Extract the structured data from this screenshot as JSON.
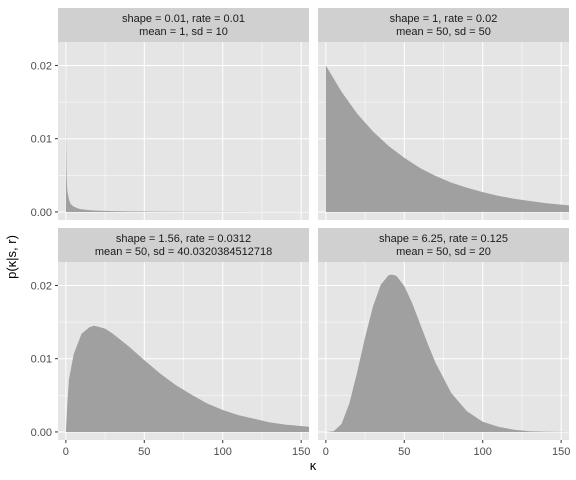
{
  "chart_data": {
    "type": "area",
    "ylabel": "p(κ|s, r)",
    "xlabel": "κ",
    "xlim": [
      -5,
      155
    ],
    "ylim": [
      -0.0011,
      0.0232
    ],
    "x_ticks": [
      0,
      50,
      100,
      150
    ],
    "y_ticks": [
      0.0,
      0.01,
      0.02
    ],
    "y_tick_labels": [
      "0.00",
      "0.01",
      "0.02"
    ],
    "fill_color": "#a0a0a0",
    "panel_bg": "#e5e5e5",
    "strip_bg": "#d0d0d0",
    "grid_color": "#ffffff",
    "grid": true,
    "facet_layout": [
      2,
      2
    ],
    "panels": [
      {
        "label1": "shape = 0.01, rate = 0.01",
        "label2": "mean = 1, sd = 10",
        "shape": 0.01,
        "rate": 0.01,
        "x": [
          0.05,
          0.1,
          0.2,
          0.5,
          1,
          2,
          3,
          5,
          8,
          10,
          15,
          20,
          30,
          40,
          60,
          80,
          100,
          120,
          155
        ],
        "y": [
          0.0218,
          0.0195,
          0.0098,
          0.0047,
          0.0028,
          0.0017,
          0.0011,
          0.00072,
          0.00045,
          0.00036,
          0.00024,
          0.00018,
          0.00011,
          8e-05,
          5e-05,
          3e-05,
          2e-05,
          1.5e-05,
          1e-05
        ]
      },
      {
        "label1": "shape = 1, rate = 0.02",
        "label2": "mean = 50, sd = 50",
        "shape": 1,
        "rate": 0.02,
        "x": [
          0,
          10,
          20,
          30,
          40,
          50,
          60,
          70,
          80,
          90,
          100,
          110,
          120,
          130,
          140,
          155
        ],
        "y": [
          0.02,
          0.0164,
          0.0134,
          0.011,
          0.009,
          0.0074,
          0.006,
          0.0049,
          0.004,
          0.0033,
          0.0027,
          0.0022,
          0.0018,
          0.0015,
          0.0012,
          0.0009
        ]
      },
      {
        "label1": "shape = 1.56, rate = 0.0312",
        "label2": "mean = 50, sd = 40.0320384512718",
        "shape": 1.5625,
        "rate": 0.03125,
        "x": [
          0,
          1,
          2,
          5,
          10,
          15,
          18,
          20,
          25,
          30,
          40,
          50,
          60,
          70,
          80,
          90,
          100,
          110,
          120,
          130,
          140,
          155
        ],
        "y": [
          0.0,
          0.0041,
          0.0072,
          0.0106,
          0.0134,
          0.0143,
          0.0145,
          0.0144,
          0.0141,
          0.0134,
          0.0117,
          0.0098,
          0.008,
          0.0064,
          0.0051,
          0.0039,
          0.003,
          0.0023,
          0.0018,
          0.0013,
          0.001,
          0.0007
        ]
      },
      {
        "label1": "shape = 6.25, rate = 0.125",
        "label2": "mean = 50, sd = 20",
        "shape": 6.25,
        "rate": 0.125,
        "x": [
          0,
          5,
          10,
          15,
          20,
          25,
          30,
          35,
          40,
          42,
          45,
          50,
          55,
          60,
          65,
          70,
          80,
          90,
          100,
          110,
          120,
          130,
          140,
          155
        ],
        "y": [
          0.0,
          0.0001,
          0.0011,
          0.0039,
          0.0082,
          0.0129,
          0.0171,
          0.0201,
          0.0214,
          0.0215,
          0.0213,
          0.0199,
          0.0176,
          0.0148,
          0.012,
          0.0094,
          0.0053,
          0.0028,
          0.0014,
          0.0007,
          0.0003,
          0.0001,
          5e-05,
          1e-05
        ]
      }
    ]
  }
}
